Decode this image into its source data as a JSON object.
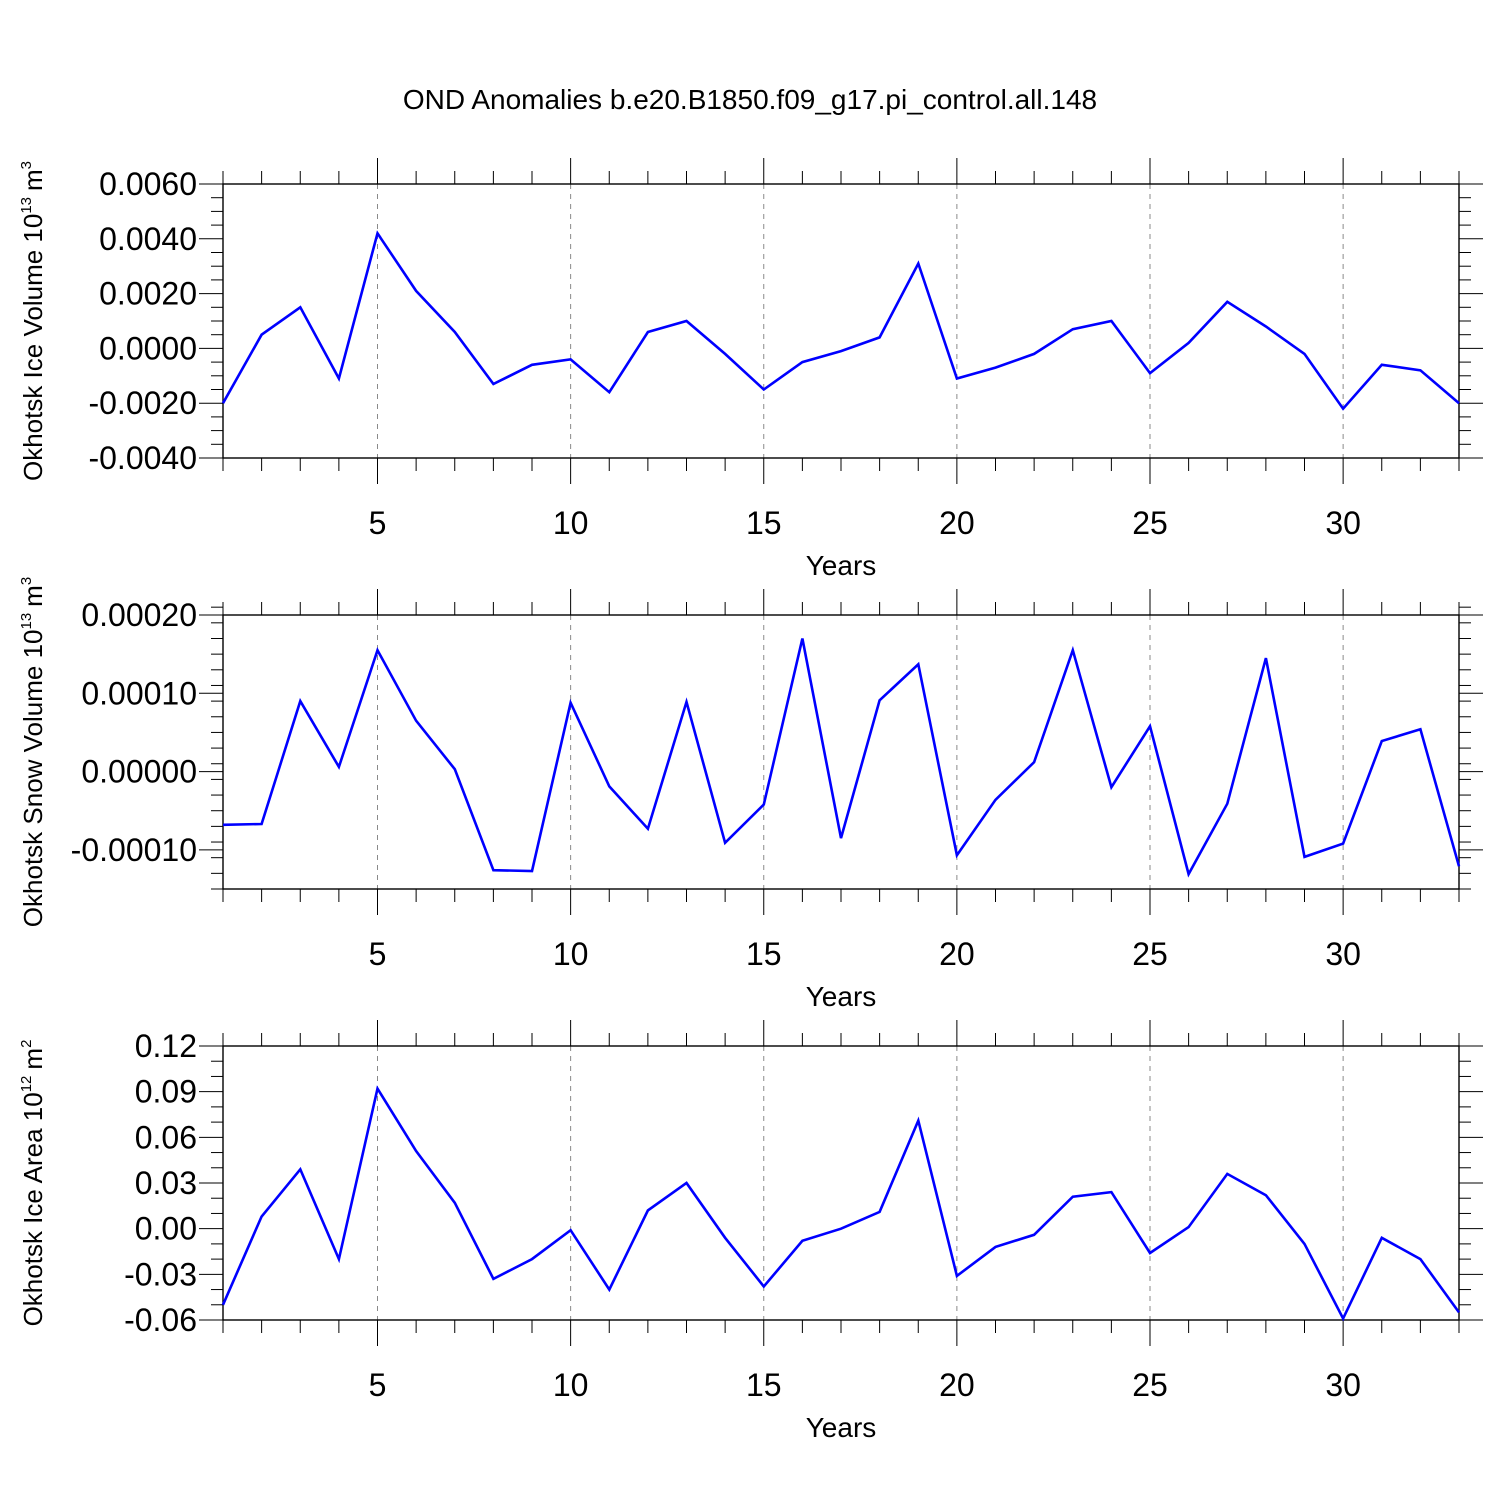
{
  "figure": {
    "title": "OND Anomalies b.e20.B1850.f09_g17.pi_control.all.148"
  },
  "chart_data": [
    {
      "type": "line",
      "xlabel": "Years",
      "ylabel": {
        "text": "Okhotsk Ice Volume 10",
        "exponent": "13",
        "unit": "m",
        "unit_exponent": "3"
      },
      "xlim": [
        1,
        33
      ],
      "ylim": [
        -0.004,
        0.006
      ],
      "xticks": [
        5,
        10,
        15,
        20,
        25,
        30
      ],
      "xtick_labels": [
        "5",
        "10",
        "15",
        "20",
        "25",
        "30"
      ],
      "yticks": [
        -0.004,
        -0.002,
        0.0,
        0.002,
        0.004,
        0.006
      ],
      "ytick_labels": [
        "-0.0040",
        "-0.0020",
        "0.0000",
        "0.0020",
        "0.0040",
        "0.0060"
      ],
      "y_minor_step": 0.0005,
      "grid": "vertical-dashed-at-major-x",
      "color": "#0000ff",
      "x": [
        1,
        2,
        3,
        4,
        5,
        6,
        7,
        8,
        9,
        10,
        11,
        12,
        13,
        14,
        15,
        16,
        17,
        18,
        19,
        20,
        21,
        22,
        23,
        24,
        25,
        26,
        27,
        28,
        29,
        30,
        31,
        32,
        33
      ],
      "values": [
        -0.002,
        0.0005,
        0.0015,
        -0.0011,
        0.0042,
        0.0021,
        0.0006,
        -0.0013,
        -0.0006,
        -0.0004,
        -0.0016,
        0.0006,
        0.001,
        -0.0002,
        -0.0015,
        -0.0005,
        -0.0001,
        0.0004,
        0.0031,
        -0.0011,
        -0.0007,
        -0.0002,
        0.0007,
        0.001,
        -0.0009,
        0.0002,
        0.0017,
        0.0008,
        -0.0002,
        -0.0022,
        -0.0006,
        -0.0008,
        -0.002
      ]
    },
    {
      "type": "line",
      "xlabel": "Years",
      "ylabel": {
        "text": "Okhotsk Snow Volume 10",
        "exponent": "13",
        "unit": "m",
        "unit_exponent": "3"
      },
      "xlim": [
        1,
        33
      ],
      "ylim": [
        -0.00015,
        0.0002
      ],
      "xticks": [
        5,
        10,
        15,
        20,
        25,
        30
      ],
      "xtick_labels": [
        "5",
        "10",
        "15",
        "20",
        "25",
        "30"
      ],
      "yticks": [
        -0.0001,
        0.0,
        0.0001,
        0.0002
      ],
      "ytick_labels": [
        "-0.00010",
        "0.00000",
        "0.00010",
        "0.00020"
      ],
      "y_minor_step": 2e-05,
      "grid": "vertical-dashed-at-major-x",
      "color": "#0000ff",
      "x": [
        1,
        2,
        3,
        4,
        5,
        6,
        7,
        8,
        9,
        10,
        11,
        12,
        13,
        14,
        15,
        16,
        17,
        18,
        19,
        20,
        21,
        22,
        23,
        24,
        25,
        26,
        27,
        28,
        29,
        30,
        31,
        32,
        33
      ],
      "values": [
        -6.8e-05,
        -6.7e-05,
        9e-05,
        6e-06,
        0.000155,
        6.5e-05,
        3e-06,
        -0.000126,
        -0.000127,
        8.8e-05,
        -1.9e-05,
        -7.3e-05,
        8.9e-05,
        -9.1e-05,
        -4.2e-05,
        0.00017,
        -8.5e-05,
        9.1e-05,
        0.000137,
        -0.000107,
        -3.6e-05,
        1.2e-05,
        0.000155,
        -2e-05,
        5.8e-05,
        -0.000131,
        -4.1e-05,
        0.000145,
        -0.000109,
        -9.2e-05,
        3.9e-05,
        5.4e-05,
        -0.000121
      ]
    },
    {
      "type": "line",
      "xlabel": "Years",
      "ylabel": {
        "text": "Okhotsk Ice Area 10",
        "exponent": "12",
        "unit": "m",
        "unit_exponent": "2"
      },
      "xlim": [
        1,
        33
      ],
      "ylim": [
        -0.06,
        0.12
      ],
      "xticks": [
        5,
        10,
        15,
        20,
        25,
        30
      ],
      "xtick_labels": [
        "5",
        "10",
        "15",
        "20",
        "25",
        "30"
      ],
      "yticks": [
        -0.06,
        -0.03,
        0.0,
        0.03,
        0.06,
        0.09,
        0.12
      ],
      "ytick_labels": [
        "-0.06",
        "-0.03",
        "0.00",
        "0.03",
        "0.06",
        "0.09",
        "0.12"
      ],
      "y_minor_step": 0.01,
      "grid": "vertical-dashed-at-major-x",
      "color": "#0000ff",
      "x": [
        1,
        2,
        3,
        4,
        5,
        6,
        7,
        8,
        9,
        10,
        11,
        12,
        13,
        14,
        15,
        16,
        17,
        18,
        19,
        20,
        21,
        22,
        23,
        24,
        25,
        26,
        27,
        28,
        29,
        30,
        31,
        32,
        33
      ],
      "values": [
        -0.05,
        0.008,
        0.039,
        -0.02,
        0.092,
        0.051,
        0.017,
        -0.033,
        -0.02,
        -0.001,
        -0.04,
        0.012,
        0.03,
        -0.006,
        -0.038,
        -0.008,
        0.0,
        0.011,
        0.071,
        -0.031,
        -0.012,
        -0.004,
        0.021,
        0.024,
        -0.016,
        0.001,
        0.036,
        0.022,
        -0.01,
        -0.059,
        -0.006,
        -0.02,
        -0.055
      ]
    }
  ]
}
